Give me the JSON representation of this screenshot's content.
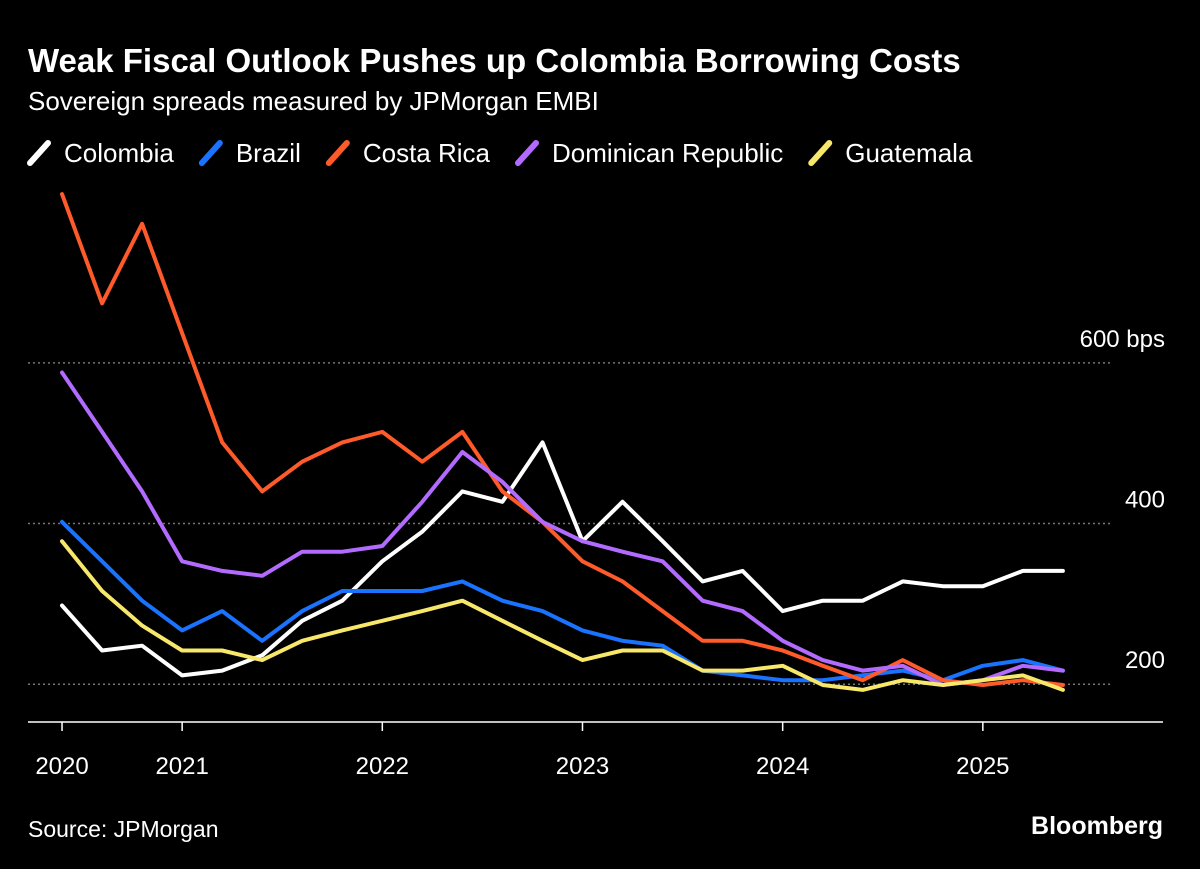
{
  "chart_data": {
    "type": "line",
    "title": "Weak Fiscal Outlook Pushes up Colombia Borrowing Costs",
    "subtitle": "Sovereign spreads measured by JPMorgan EMBI",
    "source": "Source: JPMorgan",
    "brand": "Bloomberg",
    "x": [
      2020.4,
      2020.6,
      2020.8,
      2021.0,
      2021.2,
      2021.4,
      2021.6,
      2021.8,
      2022.0,
      2022.2,
      2022.4,
      2022.6,
      2022.8,
      2023.0,
      2023.2,
      2023.4,
      2023.6,
      2023.8,
      2024.0,
      2024.2,
      2024.4,
      2024.6,
      2024.8,
      2025.0,
      2025.2,
      2025.4
    ],
    "series": [
      {
        "name": "Colombia",
        "color": "#ffffff",
        "values": [
          298,
          242,
          248,
          211,
          217,
          236,
          279,
          304,
          353,
          390,
          440,
          427,
          501,
          378,
          427,
          378,
          328,
          341,
          291,
          304,
          304,
          328,
          322,
          322,
          341,
          341
        ]
      },
      {
        "name": "Brazil",
        "color": "#1a73ff",
        "values": [
          402,
          353,
          304,
          267,
          291,
          254,
          291,
          316,
          316,
          316,
          328,
          304,
          291,
          267,
          254,
          248,
          217,
          211,
          205,
          205,
          211,
          217,
          205,
          223,
          230,
          217
        ]
      },
      {
        "name": "Costa Rica",
        "color": "#ff5a2a",
        "values": [
          810,
          674,
          773,
          637,
          501,
          440,
          477,
          501,
          514,
          477,
          514,
          440,
          402,
          353,
          328,
          291,
          254,
          254,
          242,
          223,
          205,
          230,
          205,
          199,
          205,
          199
        ]
      },
      {
        "name": "Dominican Republic",
        "color": "#b36bff",
        "values": [
          588,
          514,
          440,
          353,
          341,
          335,
          365,
          365,
          372,
          427,
          489,
          452,
          402,
          378,
          365,
          353,
          304,
          291,
          254,
          230,
          217,
          223,
          199,
          205,
          223,
          217
        ]
      },
      {
        "name": "Guatemala",
        "color": "#f7e76a",
        "values": [
          378,
          316,
          273,
          242,
          242,
          230,
          254,
          267,
          279,
          291,
          304,
          279,
          254,
          230,
          242,
          242,
          217,
          217,
          223,
          199,
          193,
          205,
          199,
          205,
          211,
          193
        ]
      }
    ],
    "xlim": [
      2020.23,
      2025.9
    ],
    "xticks": [
      {
        "value": 2020.4,
        "label": "2020"
      },
      2021,
      2022,
      2023,
      2024,
      2025
    ],
    "ylim": [
      153,
      840
    ],
    "yticks": [
      200,
      400,
      {
        "value": 600,
        "label": "600 bps"
      }
    ],
    "grid": true
  }
}
